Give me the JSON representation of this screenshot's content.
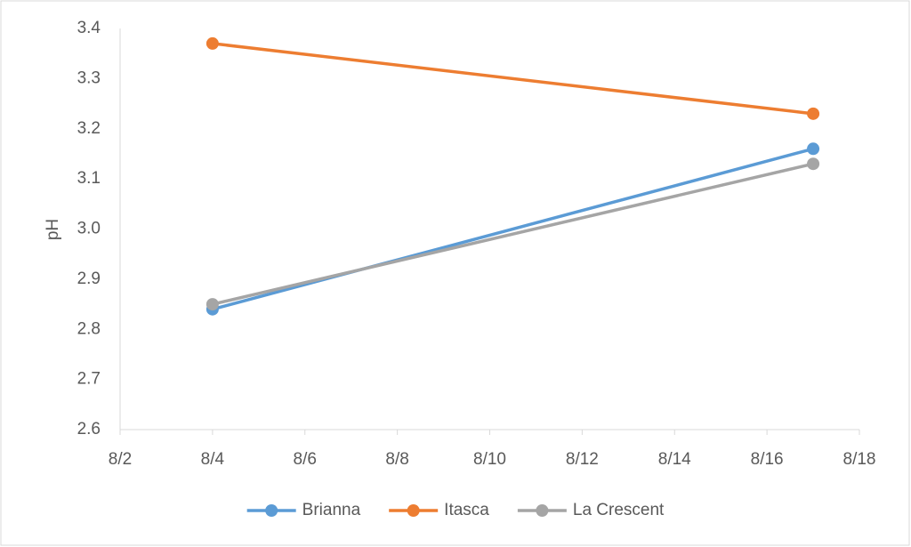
{
  "chart_data": {
    "type": "line",
    "y_label": "pH",
    "x": [
      "8/4",
      "8/17"
    ],
    "xlim": [
      "8/2",
      "8/18"
    ],
    "xticks": [
      "8/2",
      "8/4",
      "8/6",
      "8/8",
      "8/10",
      "8/12",
      "8/14",
      "8/16",
      "8/18"
    ],
    "ylim": [
      2.6,
      3.4
    ],
    "yticks": [
      2.6,
      2.7,
      2.8,
      2.9,
      {
        "value": 3.0,
        "label": "3.0"
      },
      3.1,
      3.2,
      3.3,
      3.4
    ],
    "grid": false,
    "legend": "bottom",
    "series": [
      {
        "name": "Brianna",
        "color": "#5b9bd5",
        "values": [
          2.84,
          3.16
        ]
      },
      {
        "name": "Itasca",
        "color": "#ed7d31",
        "values": [
          3.37,
          3.23
        ]
      },
      {
        "name": "La Crescent",
        "color": "#a5a5a5",
        "values": [
          2.85,
          3.13
        ]
      }
    ]
  }
}
